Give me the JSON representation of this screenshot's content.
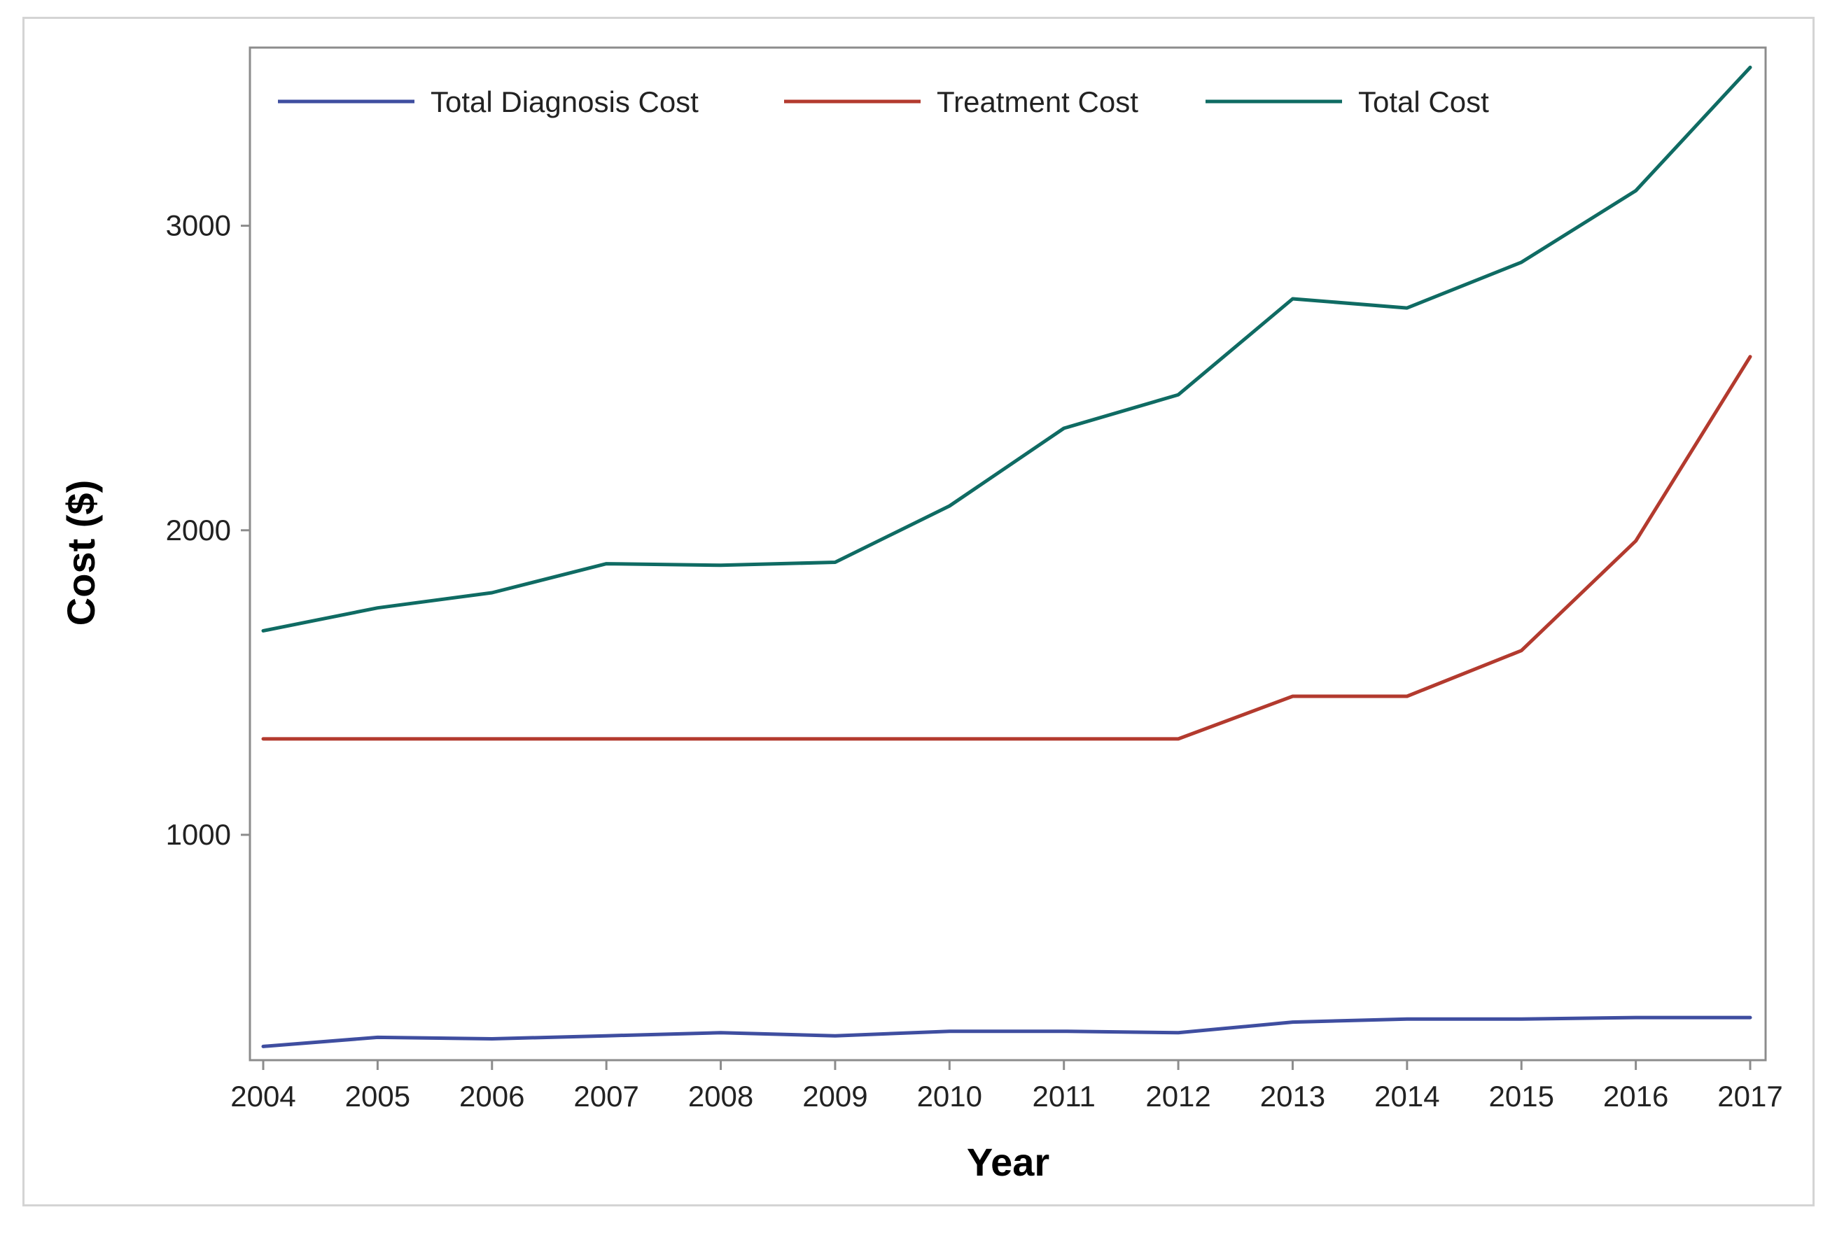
{
  "chart_data": {
    "type": "line",
    "title": "",
    "xlabel": "Year",
    "ylabel": "Cost ($)",
    "x": [
      2004,
      2005,
      2006,
      2007,
      2008,
      2009,
      2010,
      2011,
      2012,
      2013,
      2014,
      2015,
      2016,
      2017
    ],
    "ylim": [
      260,
      3585
    ],
    "y_ticks": [
      1000,
      2000,
      3000
    ],
    "grid": false,
    "legend_position": "top-left, inside",
    "series": [
      {
        "name": "Total Diagnosis Cost",
        "color": "#3f4ea0",
        "values": [
          305,
          335,
          330,
          340,
          350,
          340,
          355,
          355,
          350,
          385,
          395,
          395,
          400,
          400
        ]
      },
      {
        "name": "Treatment Cost",
        "color": "#b33a2e",
        "values": [
          1315,
          1315,
          1315,
          1315,
          1315,
          1315,
          1315,
          1315,
          1315,
          1455,
          1455,
          1605,
          1965,
          2570
        ]
      },
      {
        "name": "Total Cost",
        "color": "#0f6b63",
        "values": [
          1670,
          1745,
          1795,
          1890,
          1885,
          1895,
          2080,
          2335,
          2445,
          2760,
          2730,
          2880,
          3115,
          3520
        ]
      }
    ]
  }
}
